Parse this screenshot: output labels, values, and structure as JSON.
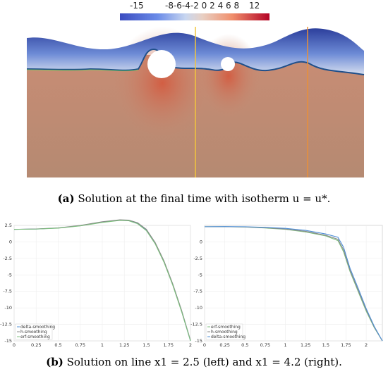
{
  "panel_a": {
    "colorbar": {
      "min_label": "-15",
      "mid_labels": "-8-6-4-2 0 2 4 6 8",
      "max_label": "12",
      "colors": [
        "#3b4cc0",
        "#8fb0fe",
        "#dddddd",
        "#f49a7b",
        "#b40426"
      ]
    },
    "caption_label": "(a)",
    "caption_text": "Solution at the final time with isotherm u = u*."
  },
  "panel_b": {
    "caption_label": "(b)",
    "caption_text": "Solution on line x1 = 2.5 (left) and x1 = 4.2 (right)."
  },
  "chart_data": [
    {
      "type": "line",
      "title": "",
      "xlim": [
        0,
        2
      ],
      "ylim": [
        -15,
        2.5
      ],
      "x_ticks": [
        "0",
        "0.25",
        "0.5",
        "0.75",
        "1",
        "1.25",
        "1.5",
        "1.75",
        "2"
      ],
      "y_ticks": [
        "2.5",
        "0",
        "-2.5",
        "-5",
        "-7.5",
        "-10",
        "-12.5",
        "-15"
      ],
      "legend": [
        "delta-smoothing",
        "h-smoothing",
        "erf-smoothing"
      ],
      "legend_position": "bottom-left",
      "series": [
        {
          "name": "delta-smoothing",
          "color": "#4f8fd6",
          "x": [
            0,
            0.25,
            0.5,
            0.75,
            1.0,
            1.2,
            1.3,
            1.4,
            1.5,
            1.6,
            1.7,
            1.8,
            1.9,
            2.0
          ],
          "y": [
            1.9,
            1.95,
            2.1,
            2.45,
            3.0,
            3.3,
            3.25,
            2.8,
            1.8,
            -0.2,
            -3.0,
            -6.5,
            -10.5,
            -15
          ]
        },
        {
          "name": "h-smoothing",
          "color": "#888888",
          "x": [
            0,
            0.25,
            0.5,
            0.75,
            1.0,
            1.2,
            1.3,
            1.4,
            1.5,
            1.6,
            1.7,
            1.8,
            1.9,
            2.0
          ],
          "y": [
            1.9,
            1.96,
            2.12,
            2.5,
            3.05,
            3.35,
            3.3,
            2.9,
            1.9,
            -0.1,
            -2.9,
            -6.4,
            -10.4,
            -14.9
          ]
        },
        {
          "name": "erf-smoothing",
          "color": "#7dbf7d",
          "x": [
            0,
            0.25,
            0.5,
            0.75,
            1.0,
            1.2,
            1.3,
            1.4,
            1.5,
            1.6,
            1.7,
            1.8,
            1.9,
            2.0
          ],
          "y": [
            1.9,
            1.94,
            2.08,
            2.42,
            2.95,
            3.25,
            3.2,
            2.75,
            1.7,
            -0.3,
            -3.1,
            -6.6,
            -10.6,
            -15
          ]
        }
      ]
    },
    {
      "type": "line",
      "title": "",
      "xlim": [
        0,
        2.2
      ],
      "ylim": [
        -15,
        2.5
      ],
      "x_ticks": [
        "0",
        "0.25",
        "0.5",
        "0.75",
        "1",
        "1.25",
        "1.5",
        "1.75",
        "2"
      ],
      "y_ticks": [
        "0",
        "-2.5",
        "-5",
        "-7.5",
        "-10",
        "-12.5",
        "-15"
      ],
      "legend": [
        "erf-smoothing",
        "h-smoothing",
        "delta-smoothing"
      ],
      "legend_position": "bottom-left",
      "series": [
        {
          "name": "erf-smoothing",
          "color": "#7dbf7d",
          "x": [
            0,
            0.25,
            0.5,
            0.75,
            1.0,
            1.25,
            1.5,
            1.65,
            1.72,
            1.8,
            1.9,
            2.0,
            2.1,
            2.2
          ],
          "y": [
            2.3,
            2.3,
            2.25,
            2.1,
            1.9,
            1.5,
            0.9,
            0.2,
            -1.5,
            -4.5,
            -7.5,
            -10.5,
            -13.0,
            -15
          ]
        },
        {
          "name": "h-smoothing",
          "color": "#888888",
          "x": [
            0,
            0.25,
            0.5,
            0.75,
            1.0,
            1.25,
            1.5,
            1.65,
            1.72,
            1.8,
            1.9,
            2.0,
            2.1,
            2.2
          ],
          "y": [
            2.3,
            2.3,
            2.27,
            2.15,
            1.95,
            1.6,
            1.0,
            0.4,
            -1.2,
            -4.3,
            -7.3,
            -10.3,
            -12.9,
            -15
          ]
        },
        {
          "name": "delta-smoothing",
          "color": "#4f8fd6",
          "x": [
            0,
            0.25,
            0.5,
            0.75,
            1.0,
            1.25,
            1.5,
            1.65,
            1.72,
            1.8,
            1.9,
            2.0,
            2.1,
            2.2
          ],
          "y": [
            2.3,
            2.32,
            2.3,
            2.2,
            2.05,
            1.75,
            1.2,
            0.7,
            -0.8,
            -4.0,
            -7.0,
            -10.1,
            -12.8,
            -15
          ]
        }
      ]
    }
  ]
}
